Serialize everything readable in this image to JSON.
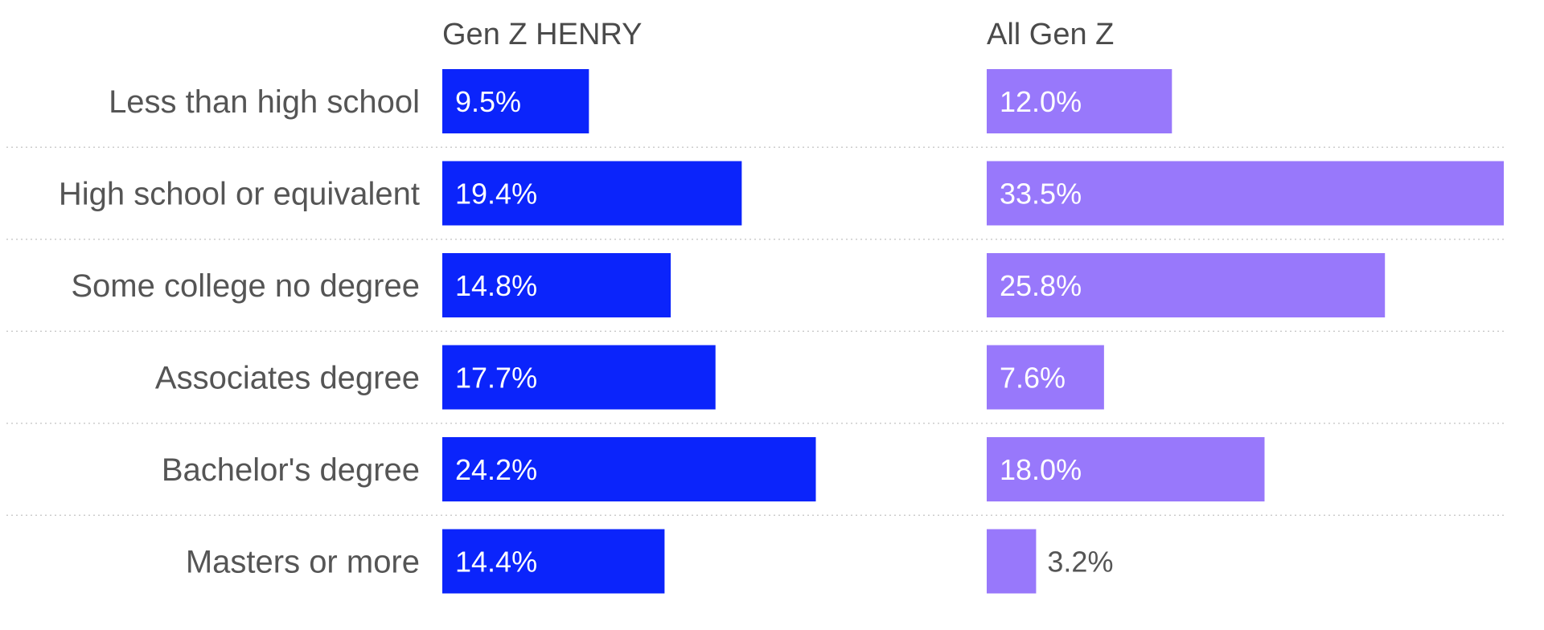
{
  "chart_data": {
    "type": "bar",
    "orientation": "horizontal",
    "categories": [
      "Less than high school",
      "High school or equivalent",
      "Some college no degree",
      "Associates degree",
      "Bachelor's degree",
      "Masters or more"
    ],
    "series": [
      {
        "name": "Gen Z HENRY",
        "values": [
          9.5,
          19.4,
          14.8,
          17.7,
          24.2,
          14.4
        ],
        "labels": [
          "9.5%",
          "19.4%",
          "14.8%",
          "17.7%",
          "24.2%",
          "14.4%"
        ],
        "color": "#0b24fb"
      },
      {
        "name": "All Gen Z",
        "values": [
          12.0,
          33.5,
          25.8,
          7.6,
          18.0,
          3.2
        ],
        "labels": [
          "12.0%",
          "33.5%",
          "25.8%",
          "7.6%",
          "18.0%",
          "3.2%"
        ],
        "color": "#9878fb"
      }
    ],
    "xlim": [
      0,
      33.5
    ],
    "grid": false,
    "row_separators": "dotted",
    "colors": {
      "label_text": "#555555",
      "title_text": "#4a4a4a",
      "inside_label": "#ffffff",
      "outside_label": "#555555",
      "separator": "#cccccc"
    }
  }
}
